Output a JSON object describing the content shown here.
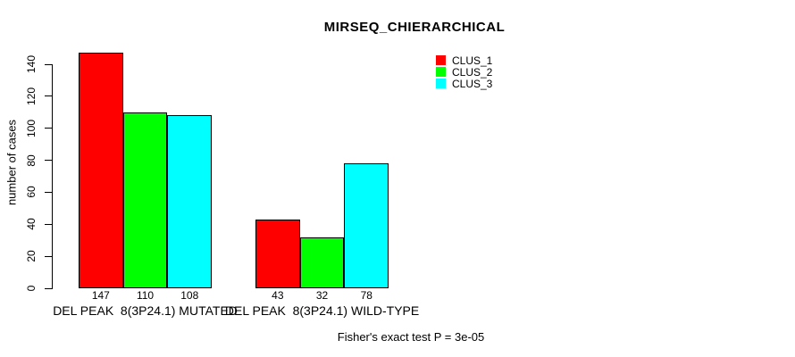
{
  "chart_data": {
    "type": "bar",
    "title": "MIRSEQ_CHIERARCHICAL",
    "ylabel": "number of cases",
    "xlabel": "",
    "ylim": [
      0,
      140
    ],
    "yticks": [
      0,
      20,
      40,
      60,
      80,
      100,
      120,
      140
    ],
    "grid": false,
    "legend_position": "top-right",
    "categories": [
      "DEL PEAK  8(3P24.1) MUTATED",
      "DEL PEAK  8(3P24.1) WILD-TYPE"
    ],
    "series": [
      {
        "name": "CLUS_1",
        "color": "#ff0000",
        "values": [
          147,
          43
        ]
      },
      {
        "name": "CLUS_2",
        "color": "#00ff00",
        "values": [
          110,
          32
        ]
      },
      {
        "name": "CLUS_3",
        "color": "#00ffff",
        "values": [
          108,
          78
        ]
      }
    ],
    "show_bar_values": true,
    "annotation": "Fisher's exact test P = 3e-05",
    "colors": {
      "background": "#ffffff",
      "axis": "#000000",
      "text": "#000000"
    }
  }
}
